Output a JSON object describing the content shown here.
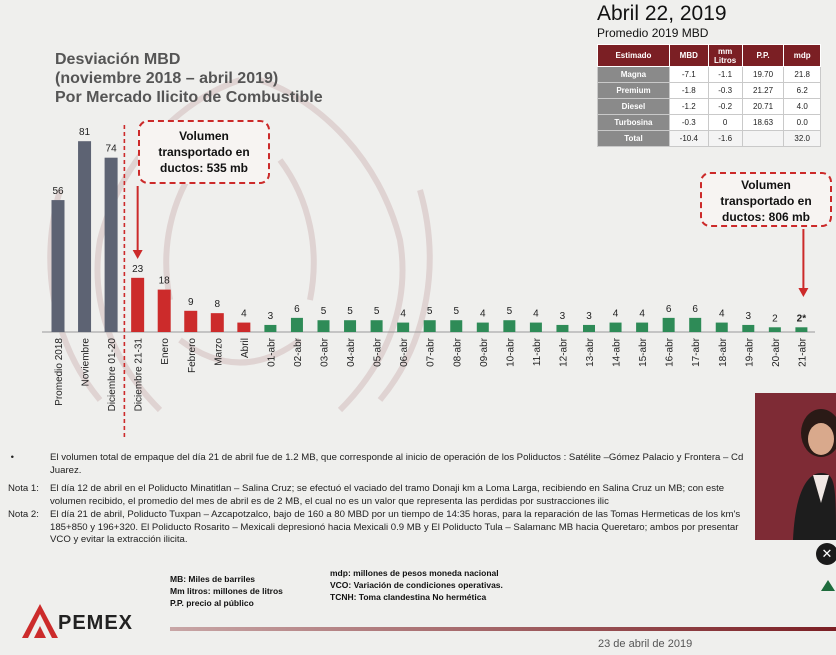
{
  "header": {
    "title_lines": [
      "Desviación MBD",
      "(noviembre 2018 – abril 2019)",
      "Por Mercado Ilicito de Combustible"
    ],
    "date": "Abril 22, 2019",
    "subtitle": "Promedio 2019 MBD"
  },
  "summary_table": {
    "headers": [
      "Estimado",
      "MBD",
      "mm Litros",
      "P.P.",
      "mdp"
    ],
    "rows": [
      [
        "Magna",
        "-7.1",
        "-1.1",
        "19.70",
        "21.8"
      ],
      [
        "Premium",
        "-1.8",
        "-0.3",
        "21.27",
        "6.2"
      ],
      [
        "Diesel",
        "-1.2",
        "-0.2",
        "20.71",
        "4.0"
      ],
      [
        "Turbosina",
        "-0.3",
        "0",
        "18.63",
        "0.0"
      ],
      [
        "Total",
        "-10.4",
        "-1.6",
        "",
        "32.0"
      ]
    ]
  },
  "callouts": {
    "left": [
      "Volumen",
      "transportado en",
      "ductos: 535 mb"
    ],
    "right": [
      "Volumen",
      "transportado en",
      "ductos: 806 mb"
    ]
  },
  "chart_data": {
    "type": "bar",
    "categories": [
      "Promedio 2018",
      "Noviembre",
      "Diciembre 01-20",
      "Diciembre 21-31",
      "Enero",
      "Febrero",
      "Marzo",
      "Abril",
      "01-abr",
      "02-abr",
      "03-abr",
      "04-abr",
      "05-abr",
      "06-abr",
      "07-abr",
      "08-abr",
      "09-abr",
      "10-abr",
      "11-abr",
      "12-abr",
      "13-abr",
      "14-abr",
      "15-abr",
      "16-abr",
      "17-abr",
      "18-abr",
      "19-abr",
      "20-abr",
      "21-abr"
    ],
    "values": [
      56,
      81,
      74,
      23,
      18,
      9,
      8,
      4,
      3,
      6,
      5,
      5,
      5,
      4,
      5,
      5,
      4,
      5,
      4,
      3,
      3,
      4,
      4,
      6,
      6,
      4,
      3,
      2,
      2
    ],
    "value_labels": [
      "56",
      "81",
      "74",
      "23",
      "18",
      "9",
      "8",
      "4",
      "3",
      "6",
      "5",
      "5",
      "5",
      "4",
      "5",
      "5",
      "4",
      "5",
      "4",
      "3",
      "3",
      "4",
      "4",
      "6",
      "6",
      "4",
      "3",
      "2",
      "2*"
    ],
    "groups": [
      "gray",
      "gray",
      "gray",
      "red",
      "red",
      "red",
      "red",
      "red",
      "green",
      "green",
      "green",
      "green",
      "green",
      "green",
      "green",
      "green",
      "green",
      "green",
      "green",
      "green",
      "green",
      "green",
      "green",
      "green",
      "green",
      "green",
      "green",
      "green",
      "green"
    ],
    "colors": {
      "gray": "#5d6373",
      "red": "#cc2b2b",
      "green": "#2e8b57"
    },
    "ylim": [
      0,
      90
    ]
  },
  "notes": {
    "bullet": "El volumen total de empaque del día 21 de abril fue de 1.2 MB, que corresponde al inicio de operación de los Poliductos : Satélite –Gómez Palacio y Frontera – Cd Juarez.",
    "nota1_label": "Nota 1:",
    "nota1": "El día 12 de abril en el Poliducto Minatitlan – Salina Cruz; se efectuó el vaciado del tramo Donaji km a Loma Larga, recibiendo en Salina Cruz un MB; con este volumen recibido, el promedio del mes de abril es de 2 MB, el cual no es un valor que representa las perdidas por sustracciones ilic",
    "nota2_label": "Nota 2:",
    "nota2": "El día 21 de abril, Poliducto Tuxpan – Azcapotzalco, bajo de 160 a 80 MBD por un tiempo de 14:35 horas, para la reparación de las Tomas Hermeticas de los km's 185+850 y 196+320. El Poliducto Rosarito – Mexicali depresionó hacia Mexicali 0.9 MB y El Poliducto Tula – Salamanc MB hacia Queretaro; ambos por presentar VCO y evitar la extracción ilicita."
  },
  "legend": {
    "left": [
      "MB: Miles de barriles",
      "Mm litros: millones de litros",
      "P.P. precio al público"
    ],
    "right": [
      "mdp: millones de pesos moneda nacional",
      "VCO: Variación de condiciones operativas.",
      "TCNH: Toma clandestina No hermética"
    ]
  },
  "footer": {
    "logo": "PEMEX",
    "date": "23 de abril de 2019"
  }
}
